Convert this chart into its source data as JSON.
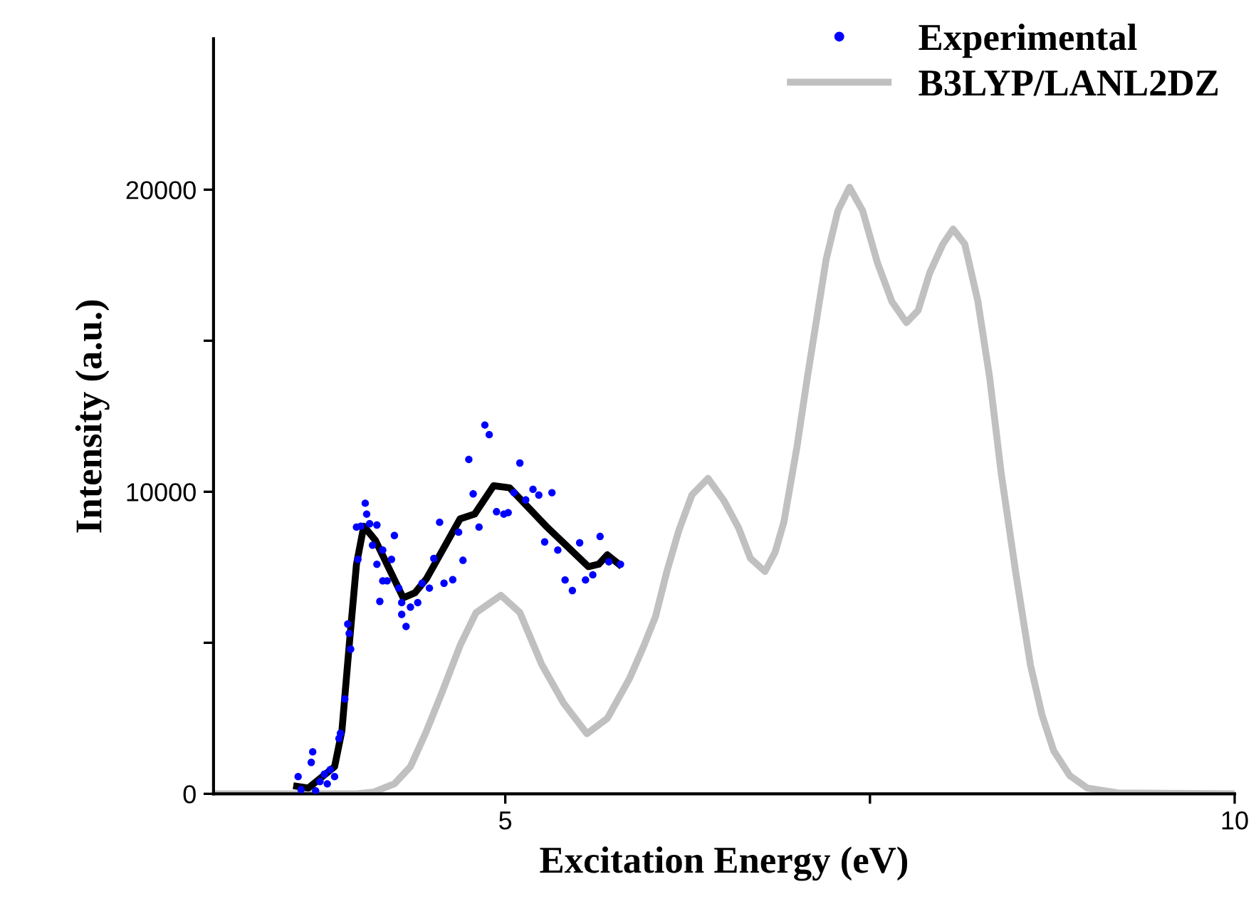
{
  "chart_data": {
    "type": "scatter",
    "xlabel": "Excitation Energy (eV)",
    "ylabel": "Intensity (a.u.)",
    "xlim": [
      3,
      10
    ],
    "xticks": [
      5,
      {
        "value": 7.5,
        "label": null
      },
      10
    ],
    "ylim": [
      0,
      25000
    ],
    "yticks": [
      0,
      {
        "value": 5000,
        "label": null
      },
      10000,
      {
        "value": 15000,
        "label": null
      },
      20000
    ],
    "grid": false,
    "legend": "top right",
    "series": [
      {
        "name": "Experimental",
        "color": "#0000ff",
        "marker": "circle",
        "x": [
          3.58,
          3.6,
          3.68,
          3.67,
          3.7,
          3.73,
          3.76,
          3.8,
          3.83,
          3.78,
          3.86,
          3.87,
          3.9,
          3.93,
          3.94,
          3.92,
          3.99,
          3.98,
          4.01,
          4.04,
          4.05,
          4.07,
          4.12,
          4.09,
          4.16,
          4.24,
          4.12,
          4.22,
          4.16,
          4.19,
          4.14,
          4.27,
          4.29,
          4.32,
          4.29,
          4.35,
          4.4,
          4.43,
          4.48,
          4.51,
          4.55,
          4.58,
          4.64,
          4.68,
          4.71,
          4.75,
          4.78,
          4.82,
          4.86,
          4.89,
          4.94,
          4.99,
          5.02,
          5.06,
          5.1,
          5.14,
          5.19,
          5.23,
          5.32,
          5.27,
          5.36,
          5.41,
          5.46,
          5.51,
          5.55,
          5.6,
          5.65,
          5.71,
          5.79
        ],
        "values": [
          570,
          140,
          1390,
          1040,
          100,
          410,
          650,
          800,
          570,
          330,
          1830,
          2000,
          3140,
          5310,
          4790,
          5620,
          7760,
          8830,
          8860,
          9620,
          9260,
          8940,
          8900,
          8230,
          8070,
          8550,
          7600,
          7760,
          7050,
          7050,
          6370,
          6810,
          6330,
          5540,
          5940,
          6180,
          6330,
          6970,
          6810,
          7790,
          8990,
          6970,
          7090,
          8660,
          7730,
          11070,
          9930,
          8830,
          12210,
          11890,
          9340,
          9260,
          9310,
          9970,
          10950,
          9730,
          10080,
          9890,
          9970,
          8340,
          8070,
          7080,
          6730,
          8310,
          7080,
          7250,
          8520,
          7680,
          7600
        ]
      },
      {
        "type": "line",
        "color": "#000000",
        "marker": "none",
        "line_style": "solid",
        "x": [
          3.57,
          3.65,
          3.83,
          3.88,
          3.93,
          3.98,
          4.03,
          4.11,
          4.3,
          4.38,
          4.46,
          4.69,
          4.79,
          4.92,
          5.03,
          5.28,
          5.57,
          5.64,
          5.7,
          5.78
        ],
        "values": [
          250,
          190,
          900,
          2080,
          4910,
          7600,
          8860,
          8390,
          6490,
          6650,
          7120,
          9100,
          9260,
          10200,
          10130,
          8860,
          7520,
          7600,
          7910,
          7600
        ]
      },
      {
        "name": "B3LYP/LANL2DZ",
        "type": "line",
        "color": "#c0c0c0",
        "marker": "none",
        "line_style": "solid",
        "x": [
          3.0,
          3.98,
          4.1,
          4.24,
          4.35,
          4.46,
          4.57,
          4.69,
          4.8,
          4.97,
          5.1,
          5.25,
          5.4,
          5.56,
          5.7,
          5.85,
          5.95,
          6.03,
          6.11,
          6.19,
          6.28,
          6.39,
          6.5,
          6.6,
          6.68,
          6.78,
          6.85,
          6.91,
          7.0,
          7.07,
          7.2,
          7.28,
          7.36,
          7.45,
          7.55,
          7.65,
          7.75,
          7.83,
          7.91,
          8.0,
          8.07,
          8.15,
          8.24,
          8.32,
          8.4,
          8.5,
          8.6,
          8.68,
          8.76,
          8.87,
          8.99,
          9.2,
          10.0
        ],
        "values": [
          0,
          0,
          60,
          330,
          900,
          2080,
          3400,
          4910,
          6000,
          6570,
          6000,
          4280,
          3000,
          1990,
          2500,
          3800,
          4900,
          5870,
          7400,
          8720,
          9900,
          10440,
          9700,
          8800,
          7800,
          7360,
          8000,
          9000,
          11500,
          13760,
          17700,
          19300,
          20080,
          19300,
          17600,
          16300,
          15600,
          16000,
          17250,
          18200,
          18700,
          18200,
          16300,
          13800,
          10600,
          7300,
          4270,
          2600,
          1420,
          600,
          190,
          30,
          0
        ]
      }
    ]
  }
}
